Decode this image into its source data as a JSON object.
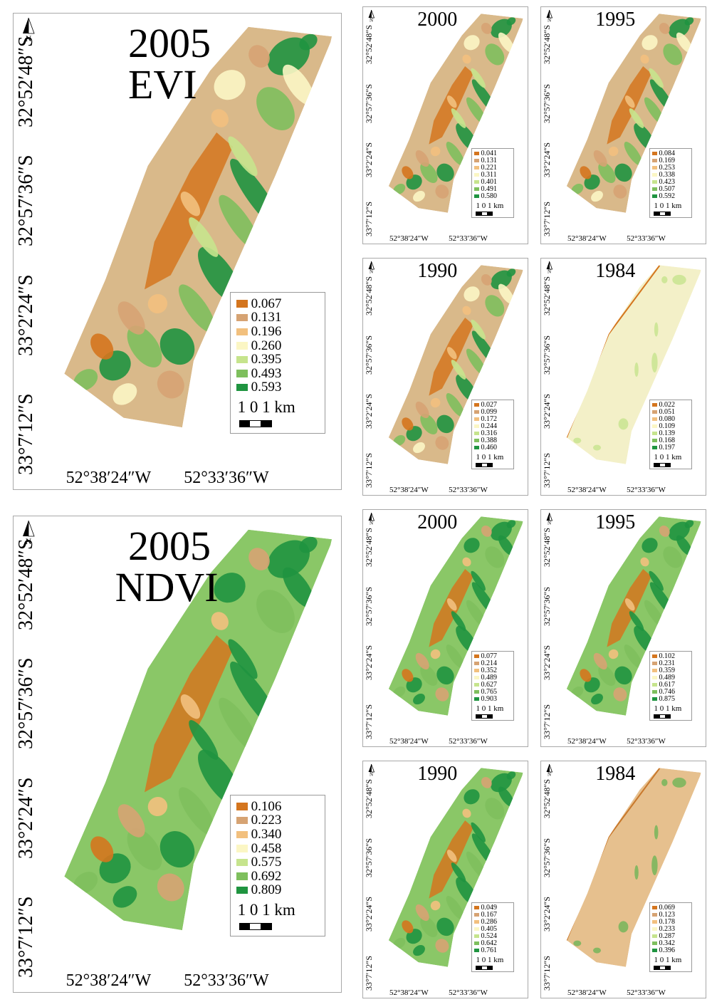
{
  "lon_labels": [
    "52°38′24″W",
    "52°33′36″W"
  ],
  "lat_labels": [
    "32°52′48″S",
    "32°57′36″S",
    "33°2′24″S",
    "33°7′12″S"
  ],
  "north_symbol": "N",
  "scale_text": "1 0 1 km",
  "legend_colors": [
    "#d4751e",
    "#d6a373",
    "#f2c07e",
    "#fbf6c4",
    "#c6e48d",
    "#7ebf5d",
    "#1f9440"
  ],
  "panels": [
    {
      "key": "evi_2005",
      "year": "2005",
      "index": "EVI",
      "legend": [
        "0.067",
        "0.131",
        "0.196",
        "0.260",
        "0.395",
        "0.493",
        "0.593"
      ]
    },
    {
      "key": "evi_2000",
      "year": "2000",
      "index": "",
      "legend": [
        "0.041",
        "0.131",
        "0.221",
        "0.311",
        "0.401",
        "0.491",
        "0.580"
      ]
    },
    {
      "key": "evi_1995",
      "year": "1995",
      "index": "",
      "legend": [
        "0.084",
        "0.169",
        "0.253",
        "0.338",
        "0.423",
        "0.507",
        "0.592"
      ]
    },
    {
      "key": "evi_1990",
      "year": "1990",
      "index": "",
      "legend": [
        "0.027",
        "0.099",
        "0.172",
        "0.244",
        "0.316",
        "0.388",
        "0.460"
      ]
    },
    {
      "key": "evi_1984",
      "year": "1984",
      "index": "",
      "legend": [
        "0.022",
        "0.051",
        "0.080",
        "0.109",
        "0.139",
        "0.168",
        "0.197"
      ]
    },
    {
      "key": "ndvi_2005",
      "year": "2005",
      "index": "NDVI",
      "legend": [
        "0.106",
        "0.223",
        "0.340",
        "0.458",
        "0.575",
        "0.692",
        "0.809"
      ]
    },
    {
      "key": "ndvi_2000",
      "year": "2000",
      "index": "",
      "legend": [
        "0.077",
        "0.214",
        "0.352",
        "0.489",
        "0.627",
        "0.765",
        "0.903"
      ]
    },
    {
      "key": "ndvi_1995",
      "year": "1995",
      "index": "",
      "legend": [
        "0.102",
        "0.231",
        "0.359",
        "0.489",
        "0.617",
        "0.746",
        "0.875"
      ]
    },
    {
      "key": "ndvi_1990",
      "year": "1990",
      "index": "",
      "legend": [
        "0.049",
        "0.167",
        "0.286",
        "0.405",
        "0.524",
        "0.642",
        "0.761"
      ]
    },
    {
      "key": "ndvi_1984",
      "year": "1984",
      "index": "",
      "legend": [
        "0.069",
        "0.123",
        "0.178",
        "0.233",
        "0.287",
        "0.342",
        "0.396"
      ]
    }
  ]
}
